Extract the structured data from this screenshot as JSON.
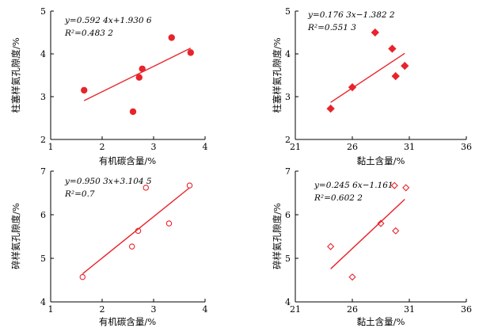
{
  "chart_data": [
    {
      "id": "p1",
      "type": "scatter",
      "marker": "filled-circle",
      "color": "#e8242b",
      "xlabel": "有机碳含量/%",
      "ylabel": "柱塞样氦孔隙度/%",
      "xlim": [
        1,
        4
      ],
      "ylim": [
        2,
        5
      ],
      "xticks": [
        1,
        2,
        3,
        4
      ],
      "yticks": [
        2,
        3,
        4,
        5
      ],
      "x": [
        1.65,
        2.6,
        2.72,
        2.78,
        3.35,
        3.72
      ],
      "y": [
        3.15,
        2.65,
        3.45,
        3.65,
        4.38,
        4.03
      ],
      "fit": {
        "slope": 0.5924,
        "intercept": 1.9306,
        "x_range": [
          1.65,
          3.72
        ]
      },
      "equation_text": "y=0.592 4x+1.930 6",
      "r2_text": "R²=0.483 2"
    },
    {
      "id": "p2",
      "type": "scatter",
      "marker": "filled-diamond",
      "color": "#e8242b",
      "xlabel": "黏土含量/%",
      "ylabel": "柱塞样氦孔隙度/%",
      "xlim": [
        21,
        36
      ],
      "ylim": [
        2,
        5
      ],
      "xticks": [
        21,
        26,
        31,
        36
      ],
      "yticks": [
        2,
        3,
        4,
        5
      ],
      "x": [
        24.1,
        26.0,
        28.0,
        29.5,
        29.8,
        30.6
      ],
      "y": [
        2.72,
        3.22,
        4.5,
        4.12,
        3.48,
        3.72
      ],
      "fit": {
        "slope": 0.1763,
        "intercept": -1.3822,
        "x_range": [
          24.1,
          30.6
        ]
      },
      "equation_text": "y=0.176 3x−1.382 2",
      "r2_text": "R²=0.551 3"
    },
    {
      "id": "p3",
      "type": "scatter",
      "marker": "open-circle",
      "color": "#e8242b",
      "xlabel": "有机碳含量/%",
      "ylabel": "碎样氦孔隙度/%",
      "xlim": [
        1,
        4
      ],
      "ylim": [
        4,
        7
      ],
      "xticks": [
        1,
        2,
        3,
        4
      ],
      "yticks": [
        4,
        5,
        6,
        7
      ],
      "x": [
        1.62,
        2.58,
        2.7,
        2.85,
        3.3,
        3.7
      ],
      "y": [
        4.57,
        5.27,
        5.63,
        6.62,
        5.8,
        6.67
      ],
      "fit": {
        "slope": 0.9503,
        "intercept": 3.1045,
        "x_range": [
          1.62,
          3.7
        ]
      },
      "equation_text": "y=0.950 3x+3.104 5",
      "r2_text": "R²=0.7"
    },
    {
      "id": "p4",
      "type": "scatter",
      "marker": "open-diamond",
      "color": "#e8242b",
      "xlabel": "黏土含量/%",
      "ylabel": "碎样氦孔隙度/%",
      "xlim": [
        21,
        36
      ],
      "ylim": [
        4,
        7
      ],
      "xticks": [
        21,
        26,
        31,
        36
      ],
      "yticks": [
        4,
        5,
        6,
        7
      ],
      "x": [
        24.1,
        26.0,
        28.5,
        29.7,
        29.8,
        30.7
      ],
      "y": [
        5.27,
        4.57,
        5.8,
        6.67,
        5.63,
        6.62
      ],
      "fit": {
        "slope": 0.2456,
        "intercept": -1.161,
        "x_range": [
          24.1,
          30.6
        ]
      },
      "equation_text": "y=0.245 6x−1.161",
      "r2_text": "R²=0.602 2"
    }
  ]
}
